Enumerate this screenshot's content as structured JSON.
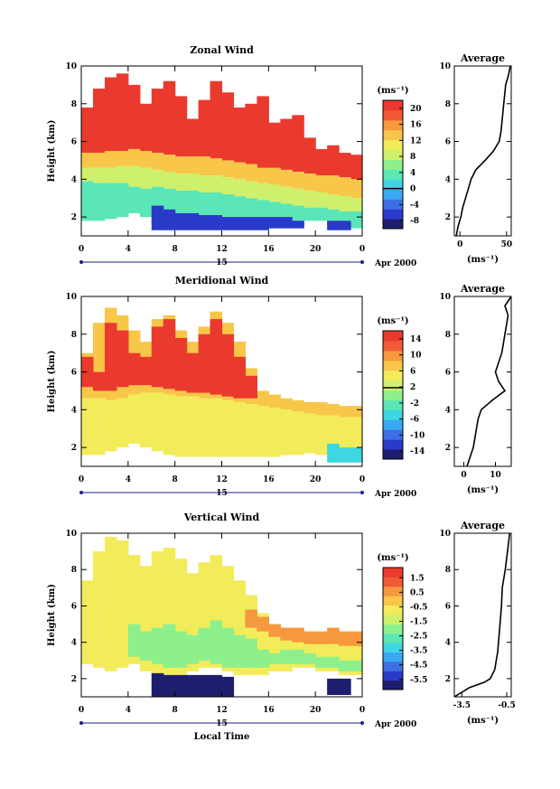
{
  "colors": {
    "background": "#ffffff",
    "axis": "#000000",
    "jet_scale": [
      "#1e1e6e",
      "#2a3ac8",
      "#3e6ee6",
      "#3aa8f2",
      "#3ed6e0",
      "#5ae6b6",
      "#8ef08c",
      "#cff06c",
      "#f2ec5a",
      "#f8c648",
      "#f6983e",
      "#f05a36",
      "#ea3a2e"
    ]
  },
  "chart_data": [
    {
      "id": "zonal",
      "type": "heatmap",
      "title": "Zonal Wind",
      "ylabel": "Height (km)",
      "xlim": [
        0,
        24
      ],
      "ylim": [
        1,
        10
      ],
      "x_ticks": [
        "0",
        "4",
        "8",
        "12",
        "16",
        "20",
        "0"
      ],
      "y_ticks": [
        "2",
        "4",
        "6",
        "8",
        "10"
      ],
      "date_axis": {
        "day_label": "15",
        "month_label": "Apr 2000"
      },
      "colorbar": {
        "unit": "(ms⁻¹)",
        "ticks": [
          "20",
          "16",
          "12",
          "8",
          "4",
          "0",
          "-4",
          "-8"
        ],
        "min": -10,
        "max": 22,
        "zero_line": 0
      },
      "layers": [
        {
          "top": [
            7.8,
            8.8,
            9.4,
            9.6,
            9.0,
            8.0,
            8.8,
            9.2,
            8.4,
            7.2,
            8.2,
            9.2,
            8.6,
            7.8,
            8.0,
            8.4,
            7.0,
            7.2,
            7.4,
            6.2,
            5.6,
            5.8,
            5.4,
            5.3
          ],
          "bottom": [
            5.4,
            5.4,
            5.5,
            5.5,
            5.6,
            5.5,
            5.4,
            5.3,
            5.2,
            5.2,
            5.2,
            5.1,
            5.0,
            4.9,
            4.8,
            4.6,
            4.6,
            4.5,
            4.4,
            4.3,
            4.2,
            4.2,
            4.1,
            4.0
          ],
          "value": 21
        },
        {
          "top": [
            5.4,
            5.4,
            5.5,
            5.5,
            5.6,
            5.5,
            5.4,
            5.3,
            5.2,
            5.2,
            5.2,
            5.1,
            5.0,
            4.9,
            4.8,
            4.6,
            4.6,
            4.5,
            4.4,
            4.3,
            4.2,
            4.2,
            4.1,
            4.0
          ],
          "bottom": [
            4.6,
            4.6,
            4.6,
            4.7,
            4.7,
            4.6,
            4.5,
            4.4,
            4.3,
            4.3,
            4.2,
            4.2,
            4.1,
            4.0,
            3.9,
            3.8,
            3.7,
            3.6,
            3.5,
            3.4,
            3.3,
            3.2,
            3.1,
            3.0
          ],
          "value": 13
        },
        {
          "top": [
            4.6,
            4.6,
            4.6,
            4.7,
            4.7,
            4.6,
            4.5,
            4.4,
            4.3,
            4.3,
            4.2,
            4.2,
            4.1,
            4.0,
            3.9,
            3.8,
            3.7,
            3.6,
            3.5,
            3.4,
            3.3,
            3.2,
            3.1,
            3.0
          ],
          "bottom": [
            3.9,
            3.8,
            3.8,
            3.8,
            3.6,
            3.5,
            3.6,
            3.5,
            3.4,
            3.4,
            3.3,
            3.3,
            3.2,
            3.1,
            3.0,
            2.9,
            2.8,
            2.7,
            2.6,
            2.5,
            2.5,
            2.4,
            2.3,
            2.3
          ],
          "value": 8
        },
        {
          "top": [
            3.9,
            3.8,
            3.8,
            3.8,
            3.6,
            3.5,
            3.6,
            3.5,
            3.4,
            3.4,
            3.3,
            3.3,
            3.2,
            3.1,
            3.0,
            2.9,
            2.8,
            2.7,
            2.6,
            2.5,
            2.5,
            2.4,
            2.3,
            2.3
          ],
          "bottom": [
            1.8,
            1.8,
            1.9,
            2.0,
            2.2,
            2.0,
            1.6,
            1.4,
            1.4,
            1.4,
            1.4,
            1.4,
            1.4,
            1.4,
            1.5,
            1.5,
            1.6,
            1.6,
            1.6,
            1.8,
            1.8,
            1.6,
            1.4,
            1.4
          ],
          "value": 4
        },
        {
          "top": [
            0,
            0,
            0,
            0,
            0,
            0,
            2.6,
            2.4,
            2.2,
            2.2,
            2.1,
            2.1,
            2.0,
            2.0,
            2.0,
            2.0,
            2.0,
            2.0,
            1.8,
            0,
            0,
            1.8,
            1.8,
            0
          ],
          "bottom": [
            0,
            0,
            0,
            0,
            0,
            0,
            1.3,
            1.3,
            1.3,
            1.3,
            1.3,
            1.3,
            1.3,
            1.3,
            1.3,
            1.3,
            1.4,
            1.4,
            1.4,
            0,
            0,
            1.3,
            1.3,
            0
          ],
          "value": -7
        }
      ],
      "average": {
        "xlim": [
          -6,
          55
        ],
        "x_ticks": [
          "0",
          "50"
        ],
        "xlabel": "(ms⁻¹)",
        "title": "Average",
        "profile": [
          [
            1,
            -4
          ],
          [
            1.5,
            -2
          ],
          [
            2,
            1
          ],
          [
            2.5,
            3
          ],
          [
            3,
            6
          ],
          [
            3.5,
            9
          ],
          [
            4,
            12
          ],
          [
            4.5,
            17
          ],
          [
            5,
            27
          ],
          [
            5.5,
            36
          ],
          [
            6,
            42
          ],
          [
            6.5,
            44
          ],
          [
            7,
            45
          ],
          [
            7.5,
            46
          ],
          [
            8,
            47
          ],
          [
            8.5,
            48
          ],
          [
            9,
            49
          ],
          [
            9.5,
            52
          ],
          [
            10,
            54
          ]
        ]
      }
    },
    {
      "id": "meridional",
      "type": "heatmap",
      "title": "Meridional Wind",
      "ylabel": "Height (km)",
      "xlim": [
        0,
        24
      ],
      "ylim": [
        1,
        10
      ],
      "x_ticks": [
        "0",
        "4",
        "8",
        "12",
        "16",
        "20",
        "0"
      ],
      "y_ticks": [
        "2",
        "4",
        "6",
        "8",
        "10"
      ],
      "date_axis": {
        "day_label": "15",
        "month_label": "Apr 2000"
      },
      "colorbar": {
        "unit": "(ms⁻¹)",
        "ticks": [
          "14",
          "10",
          "6",
          "2",
          "-2",
          "-6",
          "-10",
          "-14"
        ],
        "min": -16,
        "max": 16,
        "zero_line": 1.8
      },
      "layers": [
        {
          "top": [
            7.0,
            8.6,
            9.4,
            9.0,
            8.2,
            7.6,
            8.8,
            9.0,
            8.2,
            7.6,
            8.4,
            9.2,
            8.6,
            7.6,
            6.2,
            5.0,
            4.8,
            4.6,
            4.5,
            4.4,
            4.4,
            4.3,
            4.2,
            4.2
          ],
          "bottom": [
            4.6,
            4.6,
            4.5,
            4.6,
            4.8,
            4.9,
            4.9,
            4.8,
            4.7,
            4.7,
            4.6,
            4.6,
            4.5,
            4.4,
            4.3,
            4.2,
            4.1,
            4.0,
            3.9,
            3.8,
            3.7,
            3.7,
            3.6,
            3.6
          ],
          "value": 8
        },
        {
          "top": [
            6.8,
            6.0,
            8.6,
            8.2,
            7.0,
            6.8,
            8.4,
            8.8,
            7.8,
            7.0,
            8.0,
            8.8,
            8.0,
            6.8,
            5.8,
            0,
            0,
            0,
            0,
            0,
            0,
            0,
            0,
            0
          ],
          "bottom": [
            5.2,
            5.0,
            5.0,
            5.2,
            5.3,
            5.3,
            5.2,
            5.1,
            5.0,
            4.9,
            4.9,
            4.8,
            4.7,
            4.6,
            4.6,
            0,
            0,
            0,
            0,
            0,
            0,
            0,
            0,
            0
          ],
          "value": 14
        },
        {
          "top": [
            4.6,
            4.6,
            4.5,
            4.6,
            4.8,
            4.9,
            4.9,
            4.8,
            4.7,
            4.7,
            4.6,
            4.6,
            4.5,
            4.4,
            4.3,
            4.2,
            4.1,
            4.0,
            3.9,
            3.8,
            3.7,
            3.7,
            3.6,
            3.6
          ],
          "bottom": [
            1.6,
            1.6,
            1.8,
            2.0,
            2.2,
            2.0,
            1.8,
            1.6,
            1.5,
            1.5,
            1.5,
            1.5,
            1.5,
            1.5,
            1.5,
            1.5,
            1.5,
            1.6,
            1.6,
            1.7,
            1.6,
            1.5,
            1.5,
            1.5
          ],
          "value": 4
        },
        {
          "top": [
            0,
            0,
            0,
            0,
            0,
            0,
            0,
            0,
            0,
            0,
            0,
            0,
            0,
            0,
            0,
            0,
            0,
            0,
            0,
            0,
            0,
            2.2,
            2.0,
            2.0
          ],
          "bottom": [
            0,
            0,
            0,
            0,
            0,
            0,
            0,
            0,
            0,
            0,
            0,
            0,
            0,
            0,
            0,
            0,
            0,
            0,
            0,
            0,
            0,
            1.2,
            1.2,
            1.2
          ],
          "value": -4
        }
      ],
      "average": {
        "xlim": [
          -3,
          15
        ],
        "x_ticks": [
          "0",
          "10"
        ],
        "xlabel": "(ms⁻¹)",
        "title": "Average",
        "profile": [
          [
            1,
            1
          ],
          [
            1.5,
            2
          ],
          [
            2,
            3
          ],
          [
            2.5,
            3.5
          ],
          [
            3,
            4
          ],
          [
            3.5,
            4.5
          ],
          [
            4,
            5.5
          ],
          [
            4.5,
            9
          ],
          [
            5,
            13
          ],
          [
            5.5,
            11
          ],
          [
            6,
            10
          ],
          [
            6.5,
            11
          ],
          [
            7,
            12
          ],
          [
            7.5,
            12.5
          ],
          [
            8,
            13
          ],
          [
            8.5,
            13.5
          ],
          [
            9,
            14
          ],
          [
            9.5,
            13
          ],
          [
            10,
            15
          ]
        ]
      }
    },
    {
      "id": "vertical",
      "type": "heatmap",
      "title": "Vertical Wind",
      "ylabel": "Height (km)",
      "xlabel": "Local Time",
      "xlim": [
        0,
        24
      ],
      "ylim": [
        1,
        10
      ],
      "x_ticks": [
        "0",
        "4",
        "8",
        "12",
        "16",
        "20",
        "0"
      ],
      "y_ticks": [
        "2",
        "4",
        "6",
        "8",
        "10"
      ],
      "date_axis": {
        "day_label": "15",
        "month_label": "Apr 2000"
      },
      "colorbar": {
        "unit": "(ms⁻¹)",
        "ticks": [
          "1.5",
          "0.5",
          "-0.5",
          "-1.5",
          "-2.5",
          "-3.5",
          "-4.5",
          "-5.5"
        ],
        "min": -6.2,
        "max": 2.2
      },
      "layers": [
        {
          "top": [
            7.4,
            9.0,
            9.8,
            9.6,
            8.8,
            8.2,
            9.0,
            9.2,
            8.6,
            7.8,
            8.4,
            8.8,
            8.2,
            7.4,
            6.6,
            5.6,
            5.0,
            4.8,
            4.6,
            4.6,
            4.4,
            4.4,
            4.4,
            4.2
          ],
          "bottom": [
            2.8,
            2.6,
            2.4,
            2.6,
            2.8,
            2.4,
            2.2,
            2.2,
            2.2,
            2.4,
            2.6,
            2.6,
            2.4,
            2.2,
            2.2,
            2.2,
            2.4,
            2.4,
            2.6,
            2.6,
            2.4,
            2.4,
            2.2,
            2.2
          ],
          "value": -0.4
        },
        {
          "top": [
            0,
            0,
            0,
            0,
            5.0,
            4.6,
            4.8,
            5.0,
            4.6,
            4.4,
            4.8,
            5.2,
            4.8,
            4.4,
            4.2,
            3.6,
            3.4,
            3.6,
            3.6,
            3.4,
            3.2,
            3.2,
            3.0,
            3.0
          ],
          "bottom": [
            0,
            0,
            0,
            0,
            3.2,
            3.0,
            2.8,
            2.6,
            2.6,
            2.8,
            3.0,
            2.8,
            2.6,
            2.6,
            2.6,
            2.6,
            2.8,
            2.8,
            2.8,
            2.8,
            2.6,
            2.6,
            2.4,
            2.4
          ],
          "value": -2
        },
        {
          "top": [
            0,
            0,
            0,
            0,
            0,
            0,
            2.3,
            2.2,
            2.2,
            2.2,
            2.2,
            2.2,
            2.1,
            0,
            0,
            0,
            0,
            0,
            0,
            0,
            0,
            2.0,
            2.0,
            0
          ],
          "bottom": [
            0,
            0,
            0,
            0,
            0,
            0,
            1.0,
            1.0,
            1.0,
            1.0,
            1.0,
            1.0,
            1.0,
            0,
            0,
            0,
            0,
            0,
            0,
            0,
            0,
            1.1,
            1.1,
            0
          ],
          "value": -5.6
        },
        {
          "top": [
            0,
            0,
            0,
            0,
            0,
            0,
            0,
            0,
            0,
            0,
            0,
            0,
            0,
            0,
            5.8,
            5.4,
            5.0,
            4.8,
            4.8,
            4.6,
            4.6,
            4.8,
            4.6,
            4.6
          ],
          "bottom": [
            0,
            0,
            0,
            0,
            0,
            0,
            0,
            0,
            0,
            0,
            0,
            0,
            0,
            0,
            4.8,
            4.6,
            4.3,
            4.1,
            4.0,
            3.9,
            3.9,
            3.9,
            3.8,
            3.8
          ],
          "value": 0.8
        }
      ],
      "average": {
        "xlim": [
          -4,
          -0.2
        ],
        "x_ticks": [
          "-3.5",
          "-0.5"
        ],
        "xlabel": "(ms⁻¹)",
        "title": "Average",
        "profile": [
          [
            1,
            -4
          ],
          [
            1.2,
            -3.6
          ],
          [
            1.5,
            -3
          ],
          [
            1.8,
            -2
          ],
          [
            2,
            -1.6
          ],
          [
            2.5,
            -1.3
          ],
          [
            3,
            -1.2
          ],
          [
            3.5,
            -1.1
          ],
          [
            4,
            -1.05
          ],
          [
            5,
            -0.95
          ],
          [
            6,
            -0.85
          ],
          [
            7,
            -0.8
          ],
          [
            8,
            -0.6
          ],
          [
            9,
            -0.45
          ],
          [
            10,
            -0.3
          ]
        ]
      }
    }
  ]
}
